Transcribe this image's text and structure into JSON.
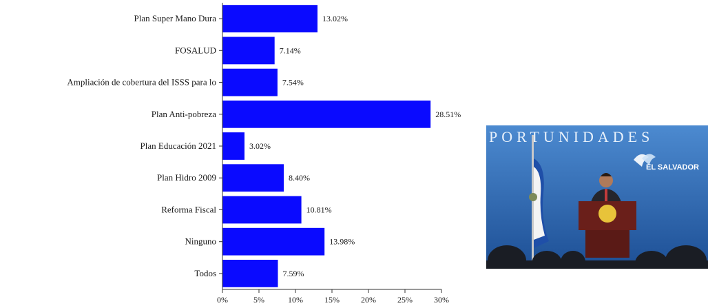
{
  "chart_data": {
    "type": "bar",
    "orientation": "horizontal",
    "categories": [
      "Plan Super Mano Dura",
      "FOSALUD",
      "Ampliación de cobertura del ISSS para lo",
      "Plan Anti-pobreza",
      "Plan Educación 2021",
      "Plan Hidro 2009",
      "Reforma Fiscal",
      "Ninguno",
      "Todos"
    ],
    "values": [
      13.02,
      7.14,
      7.54,
      28.51,
      3.02,
      8.4,
      10.81,
      13.98,
      7.59
    ],
    "value_labels": [
      "13.02%",
      "7.14%",
      "7.54%",
      "28.51%",
      "3.02%",
      "8.40%",
      "10.81%",
      "13.98%",
      "7.59%"
    ],
    "x_ticks": [
      0,
      5,
      10,
      15,
      20,
      25,
      30
    ],
    "x_tick_labels": [
      "0%",
      "5%",
      "10%",
      "15%",
      "20%",
      "25%",
      "30%"
    ],
    "xlim": [
      0,
      30
    ],
    "bar_color": "#0a0aff",
    "grid": false,
    "legend": "none",
    "title": "",
    "xlabel": "",
    "ylabel": ""
  },
  "photo": {
    "banner_text": "PORTUNIDADES",
    "logo_text": "EL SALVADOR",
    "colors": {
      "background": "#2f6fb8",
      "banner": "#5b97d4",
      "flag_blue": "#1f4fa8",
      "podium": "#6a1f1a",
      "seal": "#e8c33a"
    }
  }
}
